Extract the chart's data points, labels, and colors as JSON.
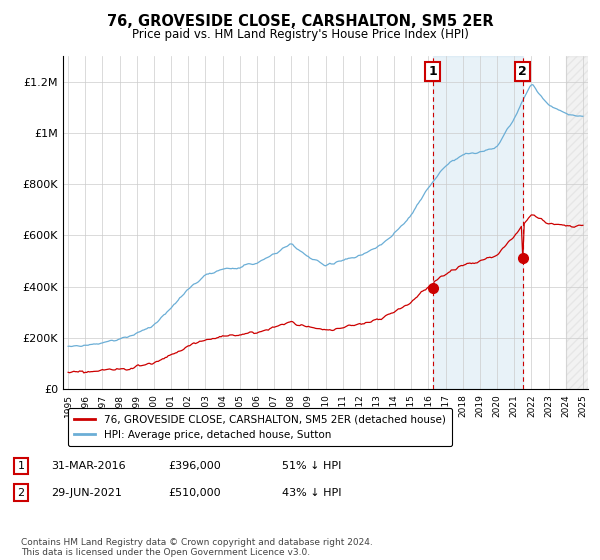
{
  "title": "76, GROVESIDE CLOSE, CARSHALTON, SM5 2ER",
  "subtitle": "Price paid vs. HM Land Registry's House Price Index (HPI)",
  "ylabel_ticks": [
    "£0",
    "£200K",
    "£400K",
    "£600K",
    "£800K",
    "£1M",
    "£1.2M"
  ],
  "ylim": [
    0,
    1300000
  ],
  "yticks": [
    0,
    200000,
    400000,
    600000,
    800000,
    1000000,
    1200000
  ],
  "x_start_year": 1995,
  "x_end_year": 2025,
  "transaction1_date": 2016.25,
  "transaction1_price": 396000,
  "transaction1_label": "1",
  "transaction2_date": 2021.5,
  "transaction2_price": 510000,
  "transaction2_label": "2",
  "hpi_color": "#6baed6",
  "hpi_fill_color": "#d6eaf8",
  "price_color": "#cc0000",
  "vline_color": "#cc0000",
  "marker_color": "#cc0000",
  "legend_house_label": "76, GROVESIDE CLOSE, CARSHALTON, SM5 2ER (detached house)",
  "legend_hpi_label": "HPI: Average price, detached house, Sutton",
  "footer": "Contains HM Land Registry data © Crown copyright and database right 2024.\nThis data is licensed under the Open Government Licence v3.0.",
  "background_color": "#ffffff",
  "grid_color": "#cccccc"
}
